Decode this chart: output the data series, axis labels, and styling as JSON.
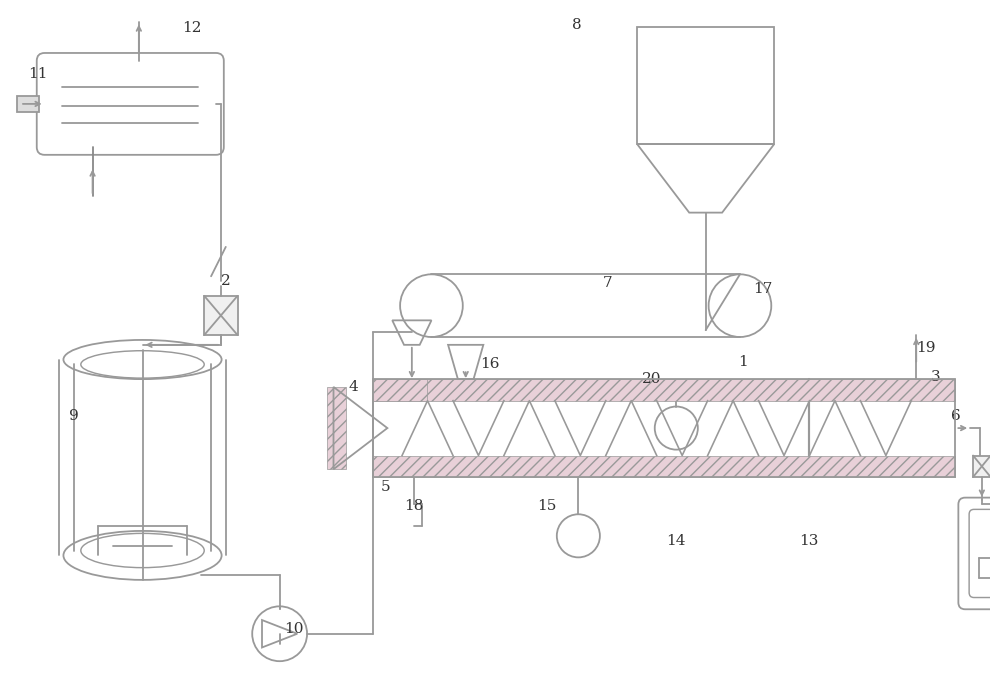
{
  "bg_color": "#ffffff",
  "lc": "#999999",
  "lc2": "#aaaaaa",
  "hatch_fc": "#e8d0d8",
  "fig_width": 10.0,
  "fig_height": 6.74,
  "dpi": 100
}
